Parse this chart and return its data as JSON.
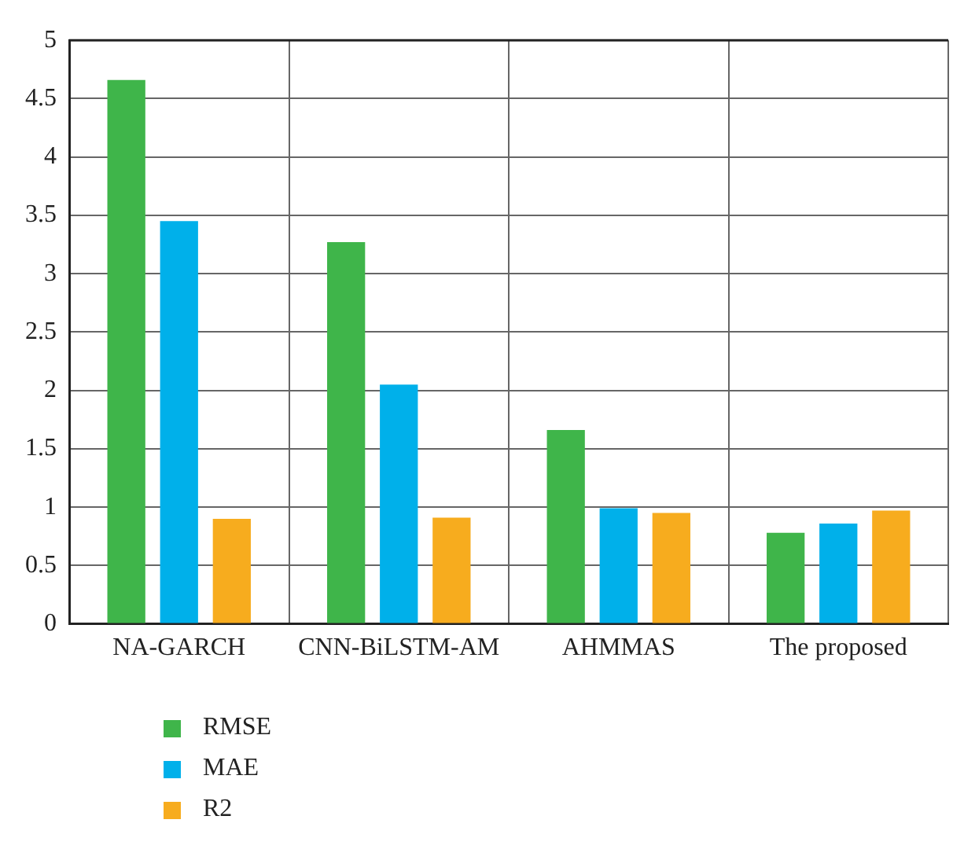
{
  "chart_data": {
    "type": "bar",
    "categories": [
      "NA-GARCH",
      "CNN-BiLSTM-AM",
      "AHMMAS",
      "The proposed"
    ],
    "series": [
      {
        "name": "RMSE",
        "color": "#3fb54a",
        "values": [
          4.66,
          3.27,
          1.66,
          0.78
        ]
      },
      {
        "name": "MAE",
        "color": "#00b0ea",
        "values": [
          3.45,
          2.05,
          0.99,
          0.86
        ]
      },
      {
        "name": "R2",
        "color": "#f7ac1e",
        "values": [
          0.9,
          0.91,
          0.95,
          0.97
        ]
      }
    ],
    "ylim": [
      0,
      5
    ],
    "yticks": [
      0,
      0.5,
      1,
      1.5,
      2,
      2.5,
      3,
      3.5,
      4,
      4.5,
      5
    ],
    "grid": true,
    "legend": "bottom left"
  }
}
